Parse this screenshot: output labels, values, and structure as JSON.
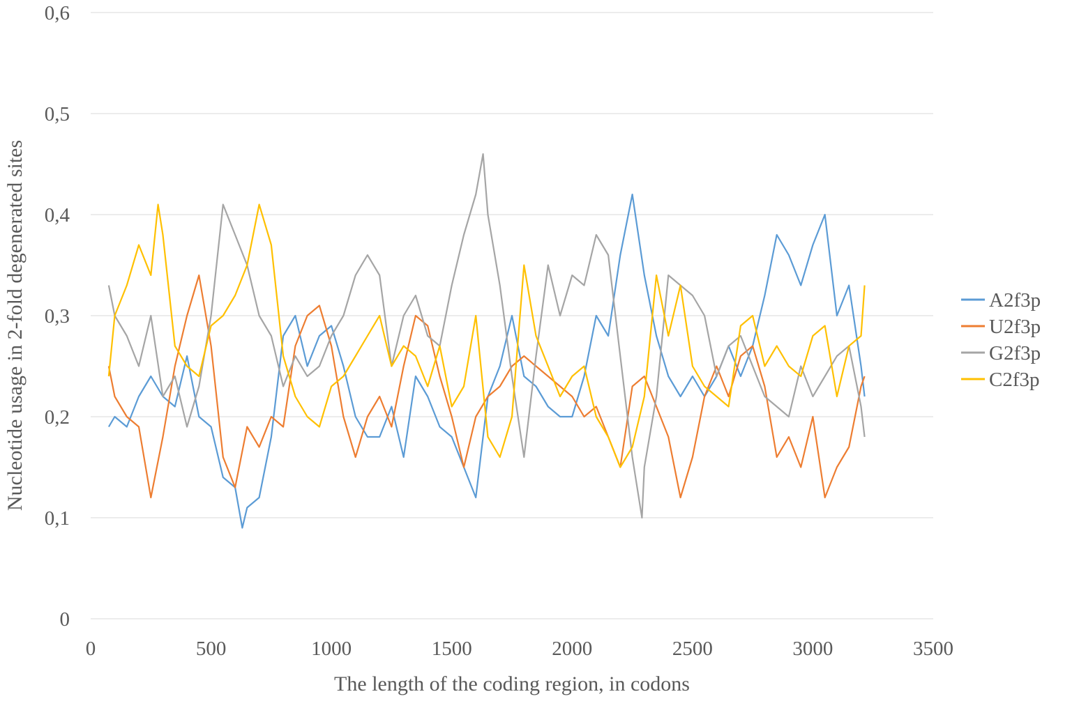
{
  "chart_data": {
    "type": "line",
    "xlabel": "The length of the coding region, in codons",
    "ylabel": "Nucleotide usage in 2-fold degenerated sites",
    "xlim": [
      0,
      3500
    ],
    "ylim": [
      0,
      0.6
    ],
    "x_ticks": [
      0,
      500,
      1000,
      1500,
      2000,
      2500,
      3000,
      3500
    ],
    "x_tick_labels": [
      "0",
      "500",
      "1000",
      "1500",
      "2000",
      "2500",
      "3000",
      "3500"
    ],
    "y_ticks": [
      0,
      0.1,
      0.2,
      0.3,
      0.4,
      0.5,
      0.6
    ],
    "y_tick_labels": [
      "0",
      "0,1",
      "0,2",
      "0,3",
      "0,4",
      "0,5",
      "0,6"
    ],
    "grid": "horizontal",
    "legend_position": "right",
    "series": [
      {
        "name": "A2f3p",
        "color": "#5b9bd5",
        "x": [
          75,
          100,
          150,
          200,
          250,
          300,
          350,
          400,
          450,
          500,
          550,
          600,
          630,
          650,
          700,
          750,
          800,
          850,
          900,
          950,
          1000,
          1050,
          1100,
          1150,
          1200,
          1250,
          1300,
          1350,
          1400,
          1450,
          1500,
          1550,
          1600,
          1650,
          1700,
          1750,
          1800,
          1850,
          1900,
          1950,
          2000,
          2050,
          2100,
          2150,
          2200,
          2250,
          2300,
          2350,
          2400,
          2450,
          2500,
          2550,
          2600,
          2650,
          2700,
          2750,
          2800,
          2850,
          2900,
          2950,
          3000,
          3050,
          3100,
          3150,
          3200,
          3215
        ],
        "y": [
          0.19,
          0.2,
          0.19,
          0.22,
          0.24,
          0.22,
          0.21,
          0.26,
          0.2,
          0.19,
          0.14,
          0.13,
          0.09,
          0.11,
          0.12,
          0.18,
          0.28,
          0.3,
          0.25,
          0.28,
          0.29,
          0.25,
          0.2,
          0.18,
          0.18,
          0.21,
          0.16,
          0.24,
          0.22,
          0.19,
          0.18,
          0.15,
          0.12,
          0.22,
          0.25,
          0.3,
          0.24,
          0.23,
          0.21,
          0.2,
          0.2,
          0.24,
          0.3,
          0.28,
          0.36,
          0.42,
          0.34,
          0.28,
          0.24,
          0.22,
          0.24,
          0.22,
          0.24,
          0.27,
          0.24,
          0.27,
          0.32,
          0.38,
          0.36,
          0.33,
          0.37,
          0.4,
          0.3,
          0.33,
          0.25,
          0.22
        ]
      },
      {
        "name": "U2f3p",
        "color": "#ed7d31",
        "x": [
          75,
          100,
          150,
          200,
          250,
          300,
          350,
          400,
          450,
          500,
          550,
          600,
          650,
          700,
          750,
          800,
          850,
          900,
          950,
          1000,
          1050,
          1100,
          1150,
          1200,
          1250,
          1300,
          1350,
          1400,
          1450,
          1500,
          1550,
          1600,
          1650,
          1700,
          1750,
          1800,
          1850,
          1900,
          1950,
          2000,
          2050,
          2100,
          2150,
          2200,
          2250,
          2300,
          2350,
          2400,
          2450,
          2500,
          2550,
          2600,
          2650,
          2700,
          2750,
          2800,
          2850,
          2900,
          2950,
          3000,
          3050,
          3100,
          3150,
          3200,
          3215
        ],
        "y": [
          0.25,
          0.22,
          0.2,
          0.19,
          0.12,
          0.18,
          0.25,
          0.3,
          0.34,
          0.27,
          0.16,
          0.13,
          0.19,
          0.17,
          0.2,
          0.19,
          0.27,
          0.3,
          0.31,
          0.27,
          0.2,
          0.16,
          0.2,
          0.22,
          0.19,
          0.25,
          0.3,
          0.29,
          0.24,
          0.2,
          0.15,
          0.2,
          0.22,
          0.23,
          0.25,
          0.26,
          0.25,
          0.24,
          0.23,
          0.22,
          0.2,
          0.21,
          0.18,
          0.15,
          0.23,
          0.24,
          0.21,
          0.18,
          0.12,
          0.16,
          0.22,
          0.25,
          0.22,
          0.26,
          0.27,
          0.23,
          0.16,
          0.18,
          0.15,
          0.2,
          0.12,
          0.15,
          0.17,
          0.23,
          0.24
        ]
      },
      {
        "name": "G2f3p",
        "color": "#a5a5a5",
        "x": [
          75,
          100,
          150,
          200,
          250,
          300,
          350,
          400,
          450,
          500,
          550,
          600,
          650,
          700,
          750,
          800,
          850,
          900,
          950,
          1000,
          1050,
          1100,
          1150,
          1200,
          1250,
          1300,
          1350,
          1400,
          1450,
          1500,
          1550,
          1600,
          1630,
          1650,
          1700,
          1750,
          1800,
          1850,
          1900,
          1950,
          2000,
          2050,
          2100,
          2150,
          2200,
          2250,
          2290,
          2300,
          2350,
          2400,
          2450,
          2500,
          2550,
          2600,
          2650,
          2700,
          2750,
          2800,
          2850,
          2900,
          2950,
          3000,
          3050,
          3100,
          3150,
          3200,
          3215
        ],
        "y": [
          0.33,
          0.3,
          0.28,
          0.25,
          0.3,
          0.22,
          0.24,
          0.19,
          0.23,
          0.3,
          0.41,
          0.38,
          0.35,
          0.3,
          0.28,
          0.23,
          0.26,
          0.24,
          0.25,
          0.28,
          0.3,
          0.34,
          0.36,
          0.34,
          0.25,
          0.3,
          0.32,
          0.28,
          0.27,
          0.33,
          0.38,
          0.42,
          0.46,
          0.4,
          0.33,
          0.24,
          0.16,
          0.26,
          0.35,
          0.3,
          0.34,
          0.33,
          0.38,
          0.36,
          0.26,
          0.16,
          0.1,
          0.15,
          0.22,
          0.34,
          0.33,
          0.32,
          0.3,
          0.24,
          0.27,
          0.28,
          0.25,
          0.22,
          0.21,
          0.2,
          0.25,
          0.22,
          0.24,
          0.26,
          0.27,
          0.21,
          0.18
        ]
      },
      {
        "name": "C2f3p",
        "color": "#ffc000",
        "x": [
          75,
          100,
          150,
          200,
          250,
          280,
          300,
          350,
          400,
          450,
          500,
          550,
          600,
          650,
          700,
          750,
          800,
          850,
          900,
          950,
          1000,
          1050,
          1100,
          1150,
          1200,
          1250,
          1300,
          1350,
          1400,
          1450,
          1500,
          1550,
          1600,
          1650,
          1700,
          1750,
          1800,
          1850,
          1900,
          1950,
          2000,
          2050,
          2100,
          2150,
          2200,
          2250,
          2300,
          2350,
          2400,
          2450,
          2500,
          2550,
          2600,
          2650,
          2700,
          2750,
          2800,
          2850,
          2900,
          2950,
          3000,
          3050,
          3100,
          3150,
          3200,
          3215
        ],
        "y": [
          0.24,
          0.3,
          0.33,
          0.37,
          0.34,
          0.41,
          0.38,
          0.27,
          0.25,
          0.24,
          0.29,
          0.3,
          0.32,
          0.35,
          0.41,
          0.37,
          0.26,
          0.22,
          0.2,
          0.19,
          0.23,
          0.24,
          0.26,
          0.28,
          0.3,
          0.25,
          0.27,
          0.26,
          0.23,
          0.27,
          0.21,
          0.23,
          0.3,
          0.18,
          0.16,
          0.2,
          0.35,
          0.28,
          0.25,
          0.22,
          0.24,
          0.25,
          0.2,
          0.18,
          0.15,
          0.17,
          0.22,
          0.34,
          0.28,
          0.33,
          0.25,
          0.23,
          0.22,
          0.21,
          0.29,
          0.3,
          0.25,
          0.27,
          0.25,
          0.24,
          0.28,
          0.29,
          0.22,
          0.27,
          0.28,
          0.33
        ]
      }
    ]
  }
}
